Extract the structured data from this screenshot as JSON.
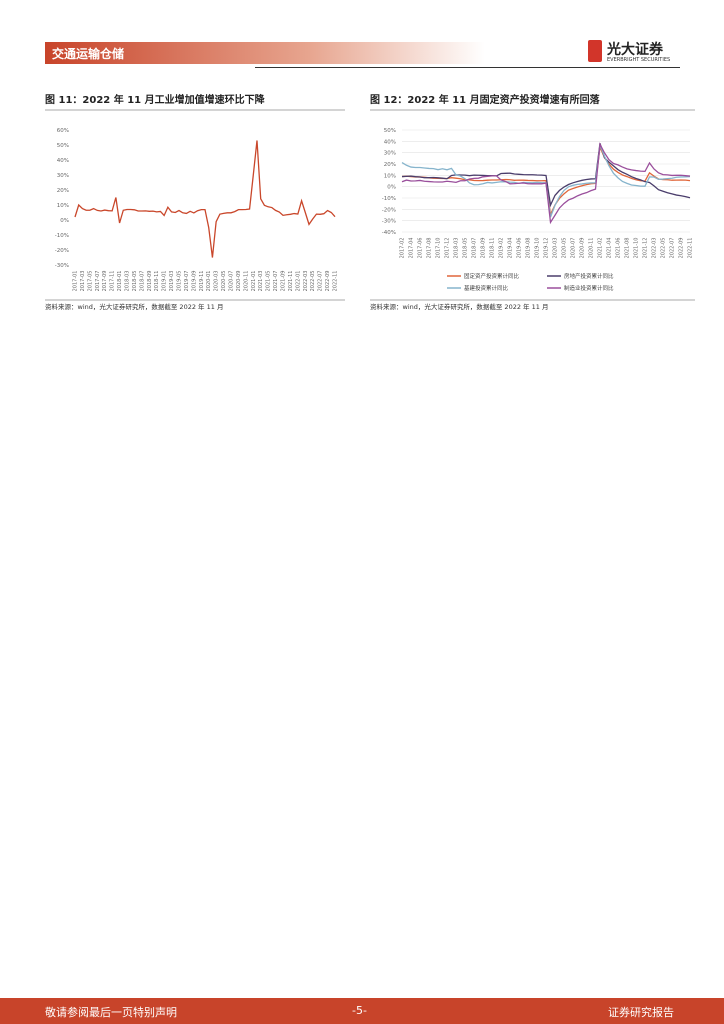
{
  "header": {
    "section": "交通运输仓储",
    "brand": "光大证券",
    "brand_en": "EVERBRIGHT SECURITIES"
  },
  "chart_data": [
    {
      "type": "line",
      "title": "图 11：2022 年 11 月工业增加值增速环比下降",
      "source": "资料来源：wind，光大证券研究所，数据截至 2022 年 11 月",
      "grid": false,
      "categories": [
        "2017-01",
        null,
        "2017-03",
        null,
        "2017-05",
        null,
        "2017-07",
        null,
        "2017-09",
        null,
        "2017-11",
        null,
        "2018-01",
        null,
        "2018-03",
        null,
        "2018-05",
        null,
        "2018-07",
        null,
        "2018-09",
        null,
        "2018-11",
        null,
        "2019-01",
        null,
        "2019-03",
        null,
        "2019-05",
        null,
        "2019-07",
        null,
        "2019-09",
        null,
        "2019-11",
        null,
        "2020-01",
        null,
        "2020-03",
        null,
        "2020-05",
        null,
        "2020-07",
        null,
        "2020-09",
        null,
        "2020-11",
        null,
        "2021-01",
        null,
        "2021-03",
        null,
        "2021-05",
        null,
        "2021-07",
        null,
        "2021-09",
        null,
        "2021-11",
        null,
        "2022-01",
        null,
        "2022-03",
        null,
        "2022-05",
        null,
        "2022-07",
        null,
        "2022-09",
        null,
        "2022-11"
      ],
      "series": [
        {
          "color": "#c9472b",
          "values": [
            2,
            10,
            7.6,
            6.5,
            6.5,
            7.6,
            6.4,
            6,
            6.6,
            6.2,
            6.1,
            15,
            -2,
            6.5,
            7,
            7,
            6.8,
            6,
            6,
            6.1,
            5.8,
            5.9,
            5.4,
            5.7,
            3,
            8.5,
            5.4,
            5,
            6.3,
            4.8,
            4.4,
            5.8,
            4.7,
            6.2,
            6.9,
            6.9,
            -5,
            -25,
            -1.1,
            3.9,
            4.4,
            4.8,
            4.8,
            5.6,
            6.9,
            6.9,
            7,
            7.3,
            30,
            53,
            14.1,
            9.8,
            8.8,
            8.3,
            6.4,
            5.3,
            3.1,
            3.5,
            3.8,
            4.3,
            4,
            12.8,
            5,
            -2.9,
            0.7,
            3.9,
            3.8,
            4.2,
            6.3,
            5,
            2.2
          ]
        }
      ],
      "ylim": [
        -30,
        60
      ],
      "yticks": [
        {
          "value": 60,
          "label": "60%"
        },
        {
          "value": 50,
          "label": "50%"
        },
        {
          "value": 40,
          "label": "40%"
        },
        {
          "value": 30,
          "label": "30%"
        },
        {
          "value": 20,
          "label": "20%"
        },
        {
          "value": 10,
          "label": "10%"
        },
        {
          "value": 0,
          "label": "0%"
        },
        {
          "value": -10,
          "label": "-10%"
        },
        {
          "value": -20,
          "label": "-20%"
        },
        {
          "value": -30,
          "label": "-30%"
        }
      ]
    },
    {
      "type": "line",
      "title": "图 12：2022 年 11 月固定资产投资增速有所回落",
      "source": "资料来源：wind，光大证券研究所，数据截至 2022 年 11 月",
      "grid": true,
      "categories": [
        "2017-02",
        null,
        "2017-04",
        null,
        "2017-06",
        null,
        "2017-08",
        null,
        "2017-10",
        null,
        "2017-12",
        null,
        "2018-03",
        null,
        "2018-05",
        null,
        "2018-07",
        null,
        "2018-09",
        null,
        "2018-11",
        null,
        "2019-02",
        null,
        "2019-04",
        null,
        "2019-06",
        null,
        "2019-08",
        null,
        "2019-10",
        null,
        "2019-12",
        null,
        "2020-03",
        null,
        "2020-05",
        null,
        "2020-07",
        null,
        "2020-09",
        null,
        "2020-11",
        null,
        "2021-02",
        null,
        "2021-04",
        null,
        "2021-06",
        null,
        "2021-08",
        null,
        "2021-10",
        null,
        "2021-12",
        null,
        "2022-03",
        null,
        "2022-05",
        null,
        "2022-07",
        null,
        "2022-09",
        null,
        "2022-11"
      ],
      "series": [
        {
          "name": "固定资产投资累计同比",
          "color": "#e0663a",
          "values": [
            8.9,
            9.2,
            8.9,
            8.6,
            8.6,
            8.3,
            7.8,
            7.5,
            7.3,
            7.2,
            7.2,
            7.9,
            7.5,
            7,
            6.1,
            6,
            5.5,
            5.3,
            5.4,
            5.7,
            5.9,
            5.9,
            6.1,
            6.3,
            6.1,
            5.6,
            5.8,
            5.7,
            5.5,
            5.4,
            5.2,
            5.2,
            5.4,
            -24.5,
            -16.1,
            -10.3,
            -6.3,
            -3.1,
            -1.6,
            -0.3,
            0.8,
            1.8,
            2.6,
            2.9,
            35,
            25.6,
            19.9,
            15.4,
            12.6,
            10.3,
            8.9,
            7.3,
            6.1,
            5.2,
            4.9,
            12.2,
            9.3,
            6.8,
            6.2,
            6.1,
            5.7,
            5.8,
            5.9,
            5.8,
            5.3
          ]
        },
        {
          "name": "房地产投资累计同比",
          "color": "#4a3d6b",
          "values": [
            8.9,
            9.1,
            9.3,
            8.8,
            8.5,
            7.9,
            7.9,
            8.1,
            7.8,
            7.5,
            7,
            9.9,
            10.4,
            10.3,
            10.2,
            9.7,
            10.2,
            10.1,
            9.9,
            9.7,
            9.7,
            9.5,
            11.6,
            11.8,
            11.9,
            11.2,
            10.9,
            10.6,
            10.5,
            10.5,
            10.3,
            10.2,
            9.9,
            -16.3,
            -7.7,
            -3.3,
            -0.3,
            1.9,
            3.4,
            4.6,
            5.6,
            6.3,
            6.8,
            7,
            38.3,
            25.6,
            21.6,
            18.3,
            15,
            12.7,
            10.9,
            8.8,
            7.2,
            6,
            4.4,
            3.7,
            0.7,
            -2.7,
            -4,
            -5.4,
            -6.4,
            -7.4,
            -8,
            -8.8,
            -9.8
          ]
        },
        {
          "name": "基建投资累计同比",
          "color": "#86b4cc",
          "values": [
            21.3,
            18.9,
            17.3,
            16.9,
            16.9,
            16.5,
            16.1,
            15.9,
            15,
            15.8,
            14.9,
            16.1,
            10.4,
            9.4,
            7,
            3.3,
            1.7,
            1.8,
            2.6,
            3.7,
            3.3,
            3.8,
            4.3,
            4.4,
            4,
            3.8,
            2.9,
            3.8,
            3.6,
            3.4,
            3.8,
            3.5,
            3.3,
            -26.9,
            -16.4,
            -8.8,
            -3.3,
            -0.1,
            1.2,
            2,
            2.4,
            3,
            3.3,
            3.4,
            36.6,
            26.8,
            18.4,
            11.8,
            7.8,
            4.6,
            2.9,
            1.5,
            1,
            0.5,
            0.4,
            8.6,
            8.5,
            6.5,
            6.7,
            7.1,
            7.4,
            8.3,
            8.6,
            8.7,
            8.9
          ]
        },
        {
          "name": "制造业投资累计同比",
          "color": "#9a4f9c",
          "values": [
            4.3,
            5.8,
            5,
            5.1,
            5.5,
            4.8,
            4.5,
            4.2,
            4.1,
            4.1,
            4.8,
            4.3,
            3.8,
            5.2,
            5.2,
            6.8,
            7.3,
            7.5,
            8.7,
            9.1,
            9.5,
            9.5,
            5.9,
            4.6,
            2.5,
            2.7,
            3,
            3.3,
            2.6,
            2.5,
            2.6,
            2.5,
            3.1,
            -31.5,
            -25.2,
            -18.8,
            -14.8,
            -11.7,
            -10.2,
            -8.1,
            -6.5,
            -5.3,
            -3.5,
            -2.2,
            37.3,
            29.8,
            23.8,
            20.4,
            19.2,
            17.3,
            15.7,
            14.8,
            14.2,
            13.7,
            13.5,
            20.9,
            15.6,
            12.2,
            10.6,
            10.4,
            9.9,
            10,
            10.1,
            9.7,
            9.3
          ]
        }
      ],
      "ylim": [
        -40,
        50
      ],
      "yticks": [
        {
          "value": 50,
          "label": "50%"
        },
        {
          "value": 40,
          "label": "40%"
        },
        {
          "value": 30,
          "label": "30%"
        },
        {
          "value": 20,
          "label": "20%"
        },
        {
          "value": 10,
          "label": "10%"
        },
        {
          "value": 0,
          "label": "0%"
        },
        {
          "value": -10,
          "label": "-10%"
        },
        {
          "value": -20,
          "label": "-20%"
        },
        {
          "value": -30,
          "label": "-30%"
        },
        {
          "value": -40,
          "label": "-40%"
        }
      ]
    }
  ],
  "footer": {
    "disclaimer": "敬请参阅最后一页特别声明",
    "page": "-5-",
    "doc_type": "证券研究报告"
  }
}
